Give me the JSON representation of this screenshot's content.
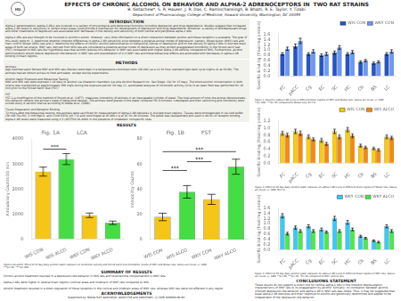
{
  "title": "EFFECTS OF CHRONIC ALCOHOL ON BEHAVIOR AND ALPHA-2 ADRENOCEPTORS IN  TWO RAT STRAINS",
  "subtitle": "B. Getachew*, S. R. Hauser, J. R. Das, C. Ramlochansingh, B. Bhatti, R. E. Taylor, Y. Tizabi",
  "annotations": [
    "Department of Pharmacology, College of Medicine, Howard University, Washington, DC 20059",
    "HU",
    "INTRODUCTION",
    "Alpha-2 adrenoceptors (alpha-2 ARs) are involved in a variety of physiological and behavioral functions including depression and drug dependence. Studies suggest that increased alpha-2 AR levels or sensitivity in certain brain areas could provide a mechanism for development of depression and drug dependence. Moreover, a variety of antidepressant drugs and other treatments of depression are associated with decreases in the density and sensitivity of both central and peripheral alpha-2 ARs.\n\nAlpha-2 ARs are also thought to be involved in alcohol's action. However, very little information on a direct interaction between alcohol and these receptors is available. The goal of this study were to: 1. determine whether inherent differences in alpha-2 AR sensitivity exist between a putative animal model of depression, namely, Wistar-Kyoto (WKY) rats and their control Wistar (WIS) rats and 2. determine the effects of chronic alcohol administration on behavioral indices of depression and on the density of alpha-2 ARs in discrete brain areas of both rat strains. WKY rats, derived from WIS rats are considered a putative animal model of depression as they exhibit exaggerated immobility in the forced swim test (FST) compared to WIS rats Our hypothesis was that alcohol reduces this behavior in WKY rats associated with higher alpha-2 AR density compared to WIS. Furthermore, alcohol administration would reduce depression-like behavior in WKY rats and exacerbation of it in WKY rats and these behavioral effects are associated with decreases in alpha-2 AR binding in brain regions.",
    "METHODS",
    "Animals\nAge-matched adult female WKY and WIS rats (Harlan) were kept in a temperature-controlled room (20-28C) at a 12:12 hour standard light-dark cycle (lights on at 10:00). The animals had ad libitum access to food and water, except during experiments.\n\nAlcohol Vapor Exposure and Behavioral Testing\nWKY and WIS rats were exposed 1-16 daily to alcohol via inhalation chambers (La Jolla Alcohol Research Inc. San Diego, CA) for 15 days. The blood alcohol concentration in both strains was maintained at approximately 160 mg% during the exposure period. On day 11, automated analyses of locomotor activity (LCA) in an open field was performed for 10 min prior to the Forced Swim Test (FST).\n\nFST\nFST is a modification of the method of Porsolt et al. (1977). measures immobility of animals in an inescapable cylinder of water. The total amount of time the animal demonstrates this behavior reflects the animal's state of behavioral despair. The animals were placed in the water container for 8 minutes, videotaped and their swimming and immobility were scored every 8 second interval according to Detke et al. (1995).\n\nTissue Preparation and Receptor Binding\n72 hours after the behavioral testing, the animals were sacrificed for measurement of alpha-2 AR densities in discrete brain regions. Tissues were homogenized in ice-cold buffer (50 mM Tris-HCl, 5 mM MgCl2, and 1 mM EDTA, pH 7.4) and centrifuged at 45,000 x g at 4C for 20 minutes. The pellet was resuspended and used in 40 nCi of receptor binding. Alpha-2 AR levels were measured using 2,3 (4H)TH/4 81-8001 in the presence of unlabeled, nonspecific sites.",
    "RESULTS",
    "Figures 1A and B. Effect of 15 day daily alcohol vapor exposure on locomotor activity and forced swim test immobility counts of WKY and Wistar rats. Values are mean +/- SEM.\n***p<.05, ****p<.001.",
    "SUMMARY OF RESULTS",
    "Chronic alcohol treatment resulted in a depression-like behavior in WIS rats and reversed the comportament in WKY rats.\n\nAlpha-2 ARs were higher in several brain regions (cortical areas and midbrain) of WKY rats compared to WIS.\n\nAlcohol treatment resulted in a down-regulation of these receptors in the cortical and midbrain areas of WKY rats, whereas WIS rats were not affected in any region.",
    "ACKNOWLEDGEMENTS",
    "Supported by: NIAAA R25 AA014028, AA023746 and DA025885. (c) SOR 000000-00-00.",
    "CONCLUSIONS STATEMENT",
    "These results do not support a direct role for central alpha-2 ARs in the inherent depressogenic characteristics of WKY rats or its exaggeration by alcohol. Similarly, no correlation between alcohol-induced depression-like behavior and alpha-2 AR in WKY rats was noted. Thus, it may be suggested that basal alpha-2 AR densities and their response to alcohol are genetically determined and appear to be independent of the depression-like behavior.",
    "Figure 2. Baseline alpha-2 AR levels in different brain regions of WKY and Wistar rats. Values are mean +/- SEM.\n**p<.001, ***p<.01 compared to Wistar only. N=7-8.",
    "Figure 3. Effect of 15 day daily alcohol vapor exposure on alpha-2 AR levels in different brain regions of Wistar rats. Values are mean +/- SEM. N=7-8.",
    "Figure 4. Effect of 15 day daily alcohol vapor exposure on alpha-2 AR levels in different brain regions of WKY rats. Values are mean +/- SEM. **p<.05, ***p<.01, *P<.01 compared to WKY control rats."
  ],
  "chart_data": [
    {
      "type": "bar",
      "title": "Fig. 1A          LCA",
      "categories": [
        "WIS CON",
        "WIS ALCO",
        "WKY CON",
        "WKY ALCO"
      ],
      "values": [
        2700,
        3200,
        950,
        650
      ],
      "errors": [
        180,
        220,
        90,
        70
      ],
      "colors": [
        "#f5c518",
        "#44dd44",
        "#f5c518",
        "#44dd44"
      ],
      "ylabel": "Ambulatory Counts/10 min",
      "ylim": [
        0,
        4000
      ],
      "yticks": [
        0,
        1000,
        2000,
        3000,
        4000
      ],
      "grid": false,
      "annotations": [
        {
          "text": "***",
          "from": "WIS CON",
          "to": "WIS ALCO",
          "y": 3600
        }
      ]
    },
    {
      "type": "bar",
      "title": "Fig. 1B          FST",
      "categories": [
        "WIS CON",
        "WIS ALCO",
        "WKY CON",
        "WKY ALCO"
      ],
      "values": [
        18,
        38,
        32,
        58
      ],
      "errors": [
        3,
        5,
        4,
        6
      ],
      "colors": [
        "#f5c518",
        "#44dd44",
        "#f5c518",
        "#44dd44"
      ],
      "ylabel": "Immobility Counts",
      "ylim": [
        0,
        80
      ],
      "yticks": [
        0,
        20,
        40,
        60,
        80
      ],
      "grid": false,
      "annotations": [
        {
          "text": "***",
          "from": "WIS CON",
          "to": "WIS ALCO",
          "y": 55
        },
        {
          "text": "***",
          "from": "WIS ALCO",
          "to": "WKY CON",
          "y": 62
        },
        {
          "text": "***",
          "from": "WIS CON",
          "to": "WKY ALCO",
          "y": 70
        }
      ]
    },
    {
      "type": "bar",
      "categories": [
        "FC",
        "pACC",
        "Cg",
        "EC",
        "SC",
        "HC",
        "Cb",
        "BS",
        "LC"
      ],
      "series": [
        {
          "name": "WIS CON",
          "color": "#2255cc",
          "values": [
            0.85,
            1.15,
            0.85,
            0.8,
            0.9,
            0.85,
            0.55,
            0.5,
            0.85
          ],
          "errors": [
            0.05,
            0.08,
            0.05,
            0.05,
            0.06,
            0.05,
            0.04,
            0.04,
            0.05
          ]
        },
        {
          "name": "WKY CON",
          "color": "#6699ff",
          "values": [
            1.05,
            1.35,
            0.95,
            0.85,
            1.1,
            0.92,
            0.6,
            0.55,
            0.95
          ],
          "errors": [
            0.06,
            0.1,
            0.06,
            0.06,
            0.07,
            0.06,
            0.04,
            0.04,
            0.06
          ]
        }
      ],
      "ylabel": "Specific Binding (fmol/mg protein)",
      "ylim": [
        0,
        1.6
      ],
      "yticks": [
        {
          "value": 0.0,
          "label": "0.0"
        },
        0.2,
        0.4,
        0.6,
        0.8,
        {
          "value": 1.0,
          "label": "1.0"
        },
        1.2,
        1.4,
        1.6
      ],
      "legend": "upper right",
      "grid": false
    },
    {
      "type": "bar",
      "categories": [
        "FC",
        "pACC",
        "Cg",
        "EC",
        "SC",
        "HC",
        "Cb",
        "BS",
        "LC"
      ],
      "series": [
        {
          "name": "WIS CON",
          "color": "#ffcc00",
          "values": [
            0.85,
            0.9,
            0.75,
            0.65,
            0.9,
            0.95,
            0.5,
            0.42,
            0.75
          ],
          "errors": [
            0.05,
            0.06,
            0.05,
            0.05,
            0.06,
            0.06,
            0.04,
            0.03,
            0.05
          ]
        },
        {
          "name": "WIS ALCO",
          "color": "#ff8800",
          "values": [
            0.8,
            0.85,
            0.68,
            0.55,
            0.75,
            0.78,
            0.45,
            0.38,
            0.72
          ],
          "errors": [
            0.05,
            0.06,
            0.04,
            0.04,
            0.05,
            0.05,
            0.03,
            0.03,
            0.04
          ]
        }
      ],
      "ylabel": "Specific Binding (fmol/mg protein)",
      "ylim": [
        0,
        1.2
      ],
      "yticks": [
        {
          "value": 0.0,
          "label": "0.0"
        },
        0.2,
        0.4,
        0.6,
        0.8,
        {
          "value": 1.0,
          "label": "1.0"
        },
        1.2
      ],
      "legend": "upper right",
      "grid": false
    },
    {
      "type": "bar",
      "categories": [
        "FC",
        "pACC",
        "Cg",
        "EC",
        "SC",
        "HC",
        "Cb",
        "BS",
        "LC"
      ],
      "series": [
        {
          "name": "WKY CON",
          "color": "#33ccff",
          "values": [
            1.3,
            0.85,
            0.9,
            0.78,
            1.2,
            1.05,
            0.52,
            0.35,
            0.9
          ],
          "errors": [
            0.08,
            0.06,
            0.06,
            0.05,
            0.08,
            0.07,
            0.04,
            0.03,
            0.06
          ]
        },
        {
          "name": "WKY ALCO",
          "color": "#44ee44",
          "values": [
            0.62,
            0.72,
            0.72,
            0.68,
            0.72,
            0.78,
            0.45,
            0.3,
            0.72
          ],
          "errors": [
            0.05,
            0.05,
            0.05,
            0.04,
            0.05,
            0.05,
            0.03,
            0.03,
            0.05
          ]
        }
      ],
      "ylabel": "Specific Binding (fmol/mg protein)",
      "ylim": [
        0,
        1.6
      ],
      "yticks": [
        {
          "value": 0.0,
          "label": "0.0"
        },
        0.2,
        0.4,
        0.6,
        0.8,
        {
          "value": 1.0,
          "label": "1.0"
        },
        1.2,
        1.4,
        1.6
      ],
      "legend": "upper right",
      "grid": false
    }
  ]
}
